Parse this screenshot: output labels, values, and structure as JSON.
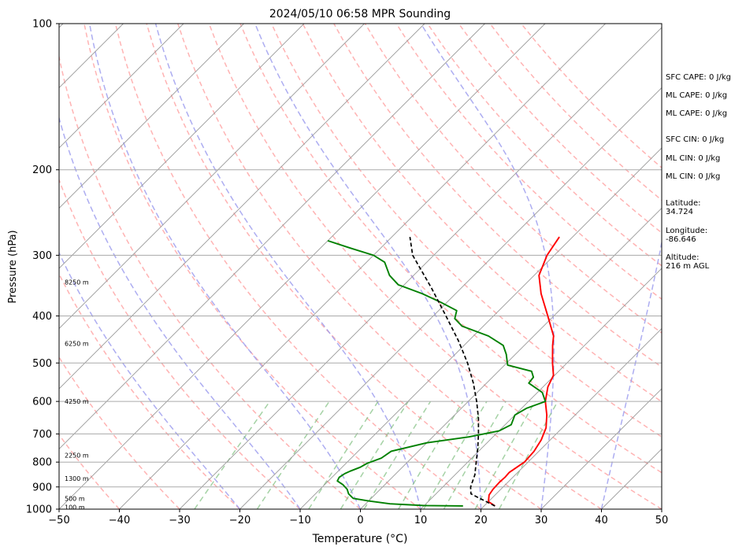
{
  "chart_data": {
    "type": "line",
    "title": "2024/05/10 06:58 MPR Sounding",
    "xlabel": "Temperature (°C)",
    "ylabel": "Pressure (hPa)",
    "x_range": [
      -50,
      50
    ],
    "y_range_hpa": [
      1000,
      100
    ],
    "y_scale": "log (skew-T)",
    "grid": true,
    "x_ticks": [
      -50,
      -40,
      -30,
      -20,
      -10,
      0,
      10,
      20,
      30,
      40,
      50
    ],
    "y_ticks": [
      1000,
      900,
      800,
      700,
      600,
      500,
      400,
      300,
      200,
      100
    ],
    "skew_isotherms_C": [
      -150,
      -140,
      -130,
      -120,
      -110,
      -100,
      -90,
      -80,
      -70,
      -60,
      -50,
      -40,
      -30,
      -20,
      -10,
      0,
      10,
      20,
      30,
      40,
      50
    ],
    "dry_adiabats_theta_C": [
      -40,
      -30,
      -20,
      -10,
      0,
      10,
      20,
      30,
      40,
      50,
      60,
      70,
      80,
      90,
      100,
      110,
      120,
      130,
      140,
      150
    ],
    "moist_adiabat_surface_C": [
      -20,
      -10,
      0,
      10,
      20,
      30,
      40,
      50
    ],
    "mixing_ratio_lines_gkg": [
      0.4,
      1,
      2,
      3,
      4,
      6,
      8,
      10,
      14,
      18
    ],
    "height_markers": [
      {
        "label": "100 m",
        "p": 991
      },
      {
        "label": "500 m",
        "p": 951
      },
      {
        "label": "1300 m",
        "p": 864
      },
      {
        "label": "2250 m",
        "p": 775
      },
      {
        "label": "4250 m",
        "p": 600
      },
      {
        "label": "6250 m",
        "p": 456
      },
      {
        "label": "8250 m",
        "p": 341
      }
    ],
    "series": [
      {
        "name": "Temperature",
        "color": "#ff0000",
        "points": [
          {
            "p": 985,
            "t": 21.8
          },
          {
            "p": 965,
            "t": 20.0
          },
          {
            "p": 935,
            "t": 19.0
          },
          {
            "p": 910,
            "t": 18.7
          },
          {
            "p": 880,
            "t": 18.6
          },
          {
            "p": 860,
            "t": 18.7
          },
          {
            "p": 840,
            "t": 18.6
          },
          {
            "p": 825,
            "t": 18.9
          },
          {
            "p": 800,
            "t": 19.4
          },
          {
            "p": 760,
            "t": 19.2
          },
          {
            "p": 720,
            "t": 18.5
          },
          {
            "p": 680,
            "t": 17.3
          },
          {
            "p": 640,
            "t": 15.3
          },
          {
            "p": 600,
            "t": 12.8
          },
          {
            "p": 560,
            "t": 10.8
          },
          {
            "p": 530,
            "t": 9.8
          },
          {
            "p": 500,
            "t": 7.6
          },
          {
            "p": 460,
            "t": 4.7
          },
          {
            "p": 440,
            "t": 3.3
          },
          {
            "p": 400,
            "t": -1.0
          },
          {
            "p": 360,
            "t": -5.8
          },
          {
            "p": 330,
            "t": -9.2
          },
          {
            "p": 300,
            "t": -11.2
          },
          {
            "p": 275,
            "t": -12.2
          }
        ]
      },
      {
        "name": "Dewpoint",
        "color": "#008000",
        "points": [
          {
            "p": 985,
            "t": 16.5
          },
          {
            "p": 983,
            "t": 10.0
          },
          {
            "p": 975,
            "t": 4.0
          },
          {
            "p": 962,
            "t": 0.0
          },
          {
            "p": 950,
            "t": -3.0
          },
          {
            "p": 930,
            "t": -4.5
          },
          {
            "p": 910,
            "t": -5.5
          },
          {
            "p": 890,
            "t": -7.0
          },
          {
            "p": 875,
            "t": -8.5
          },
          {
            "p": 860,
            "t": -8.8
          },
          {
            "p": 845,
            "t": -8.5
          },
          {
            "p": 835,
            "t": -8.0
          },
          {
            "p": 820,
            "t": -7.0
          },
          {
            "p": 805,
            "t": -6.5
          },
          {
            "p": 785,
            "t": -5.0
          },
          {
            "p": 760,
            "t": -4.5
          },
          {
            "p": 730,
            "t": 0.0
          },
          {
            "p": 710,
            "t": 6.0
          },
          {
            "p": 690,
            "t": 10.0
          },
          {
            "p": 670,
            "t": 11.0
          },
          {
            "p": 640,
            "t": 10.0
          },
          {
            "p": 620,
            "t": 10.8
          },
          {
            "p": 600,
            "t": 12.8
          },
          {
            "p": 575,
            "t": 10.8
          },
          {
            "p": 550,
            "t": 7.0
          },
          {
            "p": 535,
            "t": 6.8
          },
          {
            "p": 520,
            "t": 5.5
          },
          {
            "p": 505,
            "t": 0.5
          },
          {
            "p": 480,
            "t": -1.5
          },
          {
            "p": 460,
            "t": -3.5
          },
          {
            "p": 440,
            "t": -7.5
          },
          {
            "p": 420,
            "t": -13.5
          },
          {
            "p": 405,
            "t": -16.0
          },
          {
            "p": 390,
            "t": -17.0
          },
          {
            "p": 375,
            "t": -21.0
          },
          {
            "p": 360,
            "t": -25.5
          },
          {
            "p": 345,
            "t": -31.0
          },
          {
            "p": 330,
            "t": -34.0
          },
          {
            "p": 310,
            "t": -37.0
          },
          {
            "p": 300,
            "t": -40.0
          },
          {
            "p": 290,
            "t": -45.0
          },
          {
            "p": 280,
            "t": -50.0
          }
        ]
      },
      {
        "name": "Parcel",
        "color": "#000000",
        "dashed": true,
        "points": [
          {
            "p": 985,
            "t": 21.8
          },
          {
            "p": 950,
            "t": 18.0
          },
          {
            "p": 930,
            "t": 15.8
          },
          {
            "p": 900,
            "t": 14.6
          },
          {
            "p": 850,
            "t": 13.3
          },
          {
            "p": 800,
            "t": 11.4
          },
          {
            "p": 750,
            "t": 9.4
          },
          {
            "p": 700,
            "t": 7.1
          },
          {
            "p": 650,
            "t": 4.5
          },
          {
            "p": 600,
            "t": 1.4
          },
          {
            "p": 550,
            "t": -2.2
          },
          {
            "p": 500,
            "t": -6.5
          },
          {
            "p": 450,
            "t": -11.7
          },
          {
            "p": 400,
            "t": -17.9
          },
          {
            "p": 350,
            "t": -25.0
          },
          {
            "p": 300,
            "t": -33.5
          },
          {
            "p": 275,
            "t": -37.0
          }
        ]
      }
    ]
  },
  "side_panel": [
    {
      "lines": [
        "SFC CAPE: 0 J/kg"
      ]
    },
    {
      "lines": [
        "ML CAPE: 0 J/kg"
      ]
    },
    {
      "lines": [
        "ML CAPE: 0 J/kg"
      ]
    },
    {
      "lines": [
        "SFC CIN: 0 J/kg"
      ]
    },
    {
      "lines": [
        "ML CIN: 0 J/kg"
      ]
    },
    {
      "lines": [
        "ML CIN: 0 J/kg"
      ]
    },
    {
      "lines": [
        "Latitude:",
        "34.724"
      ]
    },
    {
      "lines": [
        "Longitude:",
        "-86.646"
      ]
    },
    {
      "lines": [
        "Altitude:",
        "216 m AGL"
      ]
    }
  ],
  "colors": {
    "temperature": "#ff0000",
    "dewpoint": "#008000",
    "parcel": "#000000",
    "dry_adiabat": "#ff9999",
    "moist_adiabat": "#9999ee",
    "mixing_ratio": "#7fbf7f",
    "isotherm": "#999999"
  }
}
